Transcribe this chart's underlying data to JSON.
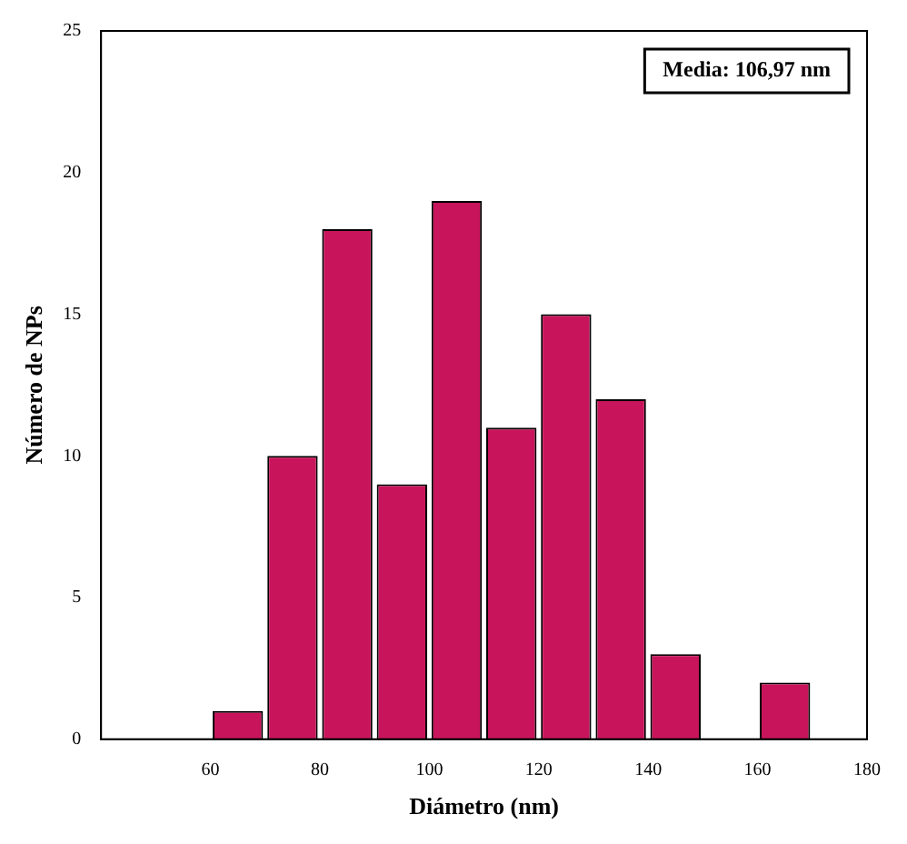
{
  "chart_data": {
    "type": "histogram",
    "xlabel": "Diámetro (nm)",
    "ylabel": "Número de NPs",
    "annotations": [
      "Media: 106,97 nm"
    ],
    "bins": [
      60,
      70,
      80,
      90,
      100,
      110,
      120,
      130,
      140,
      150,
      160,
      170
    ],
    "values": [
      1,
      10,
      18,
      9,
      19,
      11,
      15,
      12,
      3,
      0,
      2
    ],
    "color": "#c8145a",
    "xlim": [
      40,
      180
    ],
    "xticks": [
      60,
      80,
      100,
      120,
      140,
      160,
      180
    ],
    "ylim": [
      0,
      25
    ],
    "yticks": [
      0,
      5,
      10,
      15,
      20,
      25
    ],
    "grid": false,
    "legend": false
  }
}
